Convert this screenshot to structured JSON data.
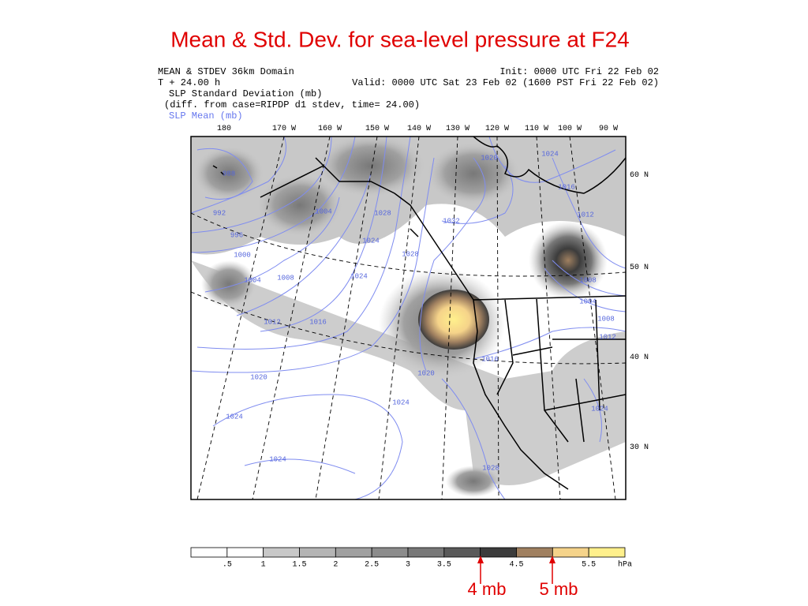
{
  "title": "Mean & Std. Dev. for sea-level pressure at F24",
  "header": {
    "lines": [
      "MEAN & STDEV 36km Domain",
      "T +  24.00 h",
      "SLP Standard Deviation (mb)",
      "(diff. from case=RIPDP d1 stdev, time= 24.00)",
      "SLP Mean (mb)"
    ],
    "init": "Init: 0000 UTC Fri 22 Feb 02",
    "valid": "Valid: 0000 UTC Sat 23 Feb 02 (1600 PST Fri 22 Feb 02)"
  },
  "longitude_labels": [
    "180",
    "170 W",
    "160 W",
    "150 W",
    "140 W",
    "130 W",
    "120 W",
    "110 W",
    "100 W",
    "90 W"
  ],
  "latitude_labels": [
    "60 N",
    "50 N",
    "40 N",
    "30 N"
  ],
  "contour_labels": [
    "988",
    "992",
    "996",
    "1000",
    "1004",
    "1008",
    "1012",
    "1016",
    "1020",
    "1024",
    "1024",
    "1004",
    "1024",
    "1028",
    "1024",
    "1028",
    "1032",
    "1020",
    "1024",
    "1016",
    "1012",
    "1008",
    "1004",
    "1008",
    "1012",
    "1016",
    "1020",
    "1024",
    "1024",
    "1028"
  ],
  "colorbar": {
    "colors": [
      "#ffffff",
      "#ffffff",
      "#c8c8c8",
      "#b4b4b4",
      "#a0a0a0",
      "#8c8c8c",
      "#787878",
      "#5a5a5a",
      "#3c3c3c",
      "#a08060",
      "#f5d38a",
      "#fff08c"
    ],
    "labels": [
      ".5",
      "1",
      "1.5",
      "2",
      "2.5",
      "3",
      "3.5",
      "4.5",
      "5.5"
    ],
    "unit": "hPa"
  },
  "annotations": [
    "4 mb",
    "5 mb"
  ]
}
